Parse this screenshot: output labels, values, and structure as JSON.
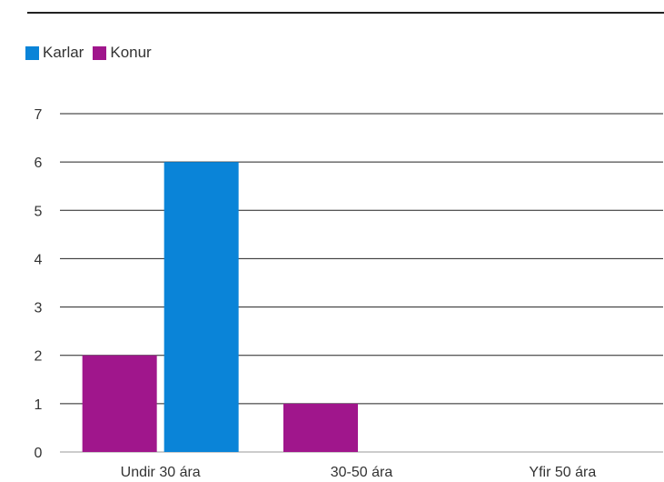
{
  "chart_data": {
    "type": "bar",
    "categories": [
      "Undir 30 ára",
      "30-50 ára",
      "Yfir 50 ára"
    ],
    "series": [
      {
        "name": "Konur",
        "color": "#a0168c",
        "values": [
          2,
          1,
          0
        ]
      },
      {
        "name": "Karlar",
        "color": "#0a84d8",
        "values": [
          6,
          0,
          0
        ]
      }
    ],
    "legend": [
      {
        "name": "Karlar",
        "color": "#0a84d8"
      },
      {
        "name": "Konur",
        "color": "#a0168c"
      }
    ],
    "legend_placement": "top-left",
    "y_ticks": [
      "0",
      "1",
      "2",
      "3",
      "4",
      "5",
      "6",
      "7"
    ],
    "ylim": [
      0,
      7
    ],
    "grid": true,
    "title": "",
    "xlabel": "",
    "ylabel": ""
  }
}
